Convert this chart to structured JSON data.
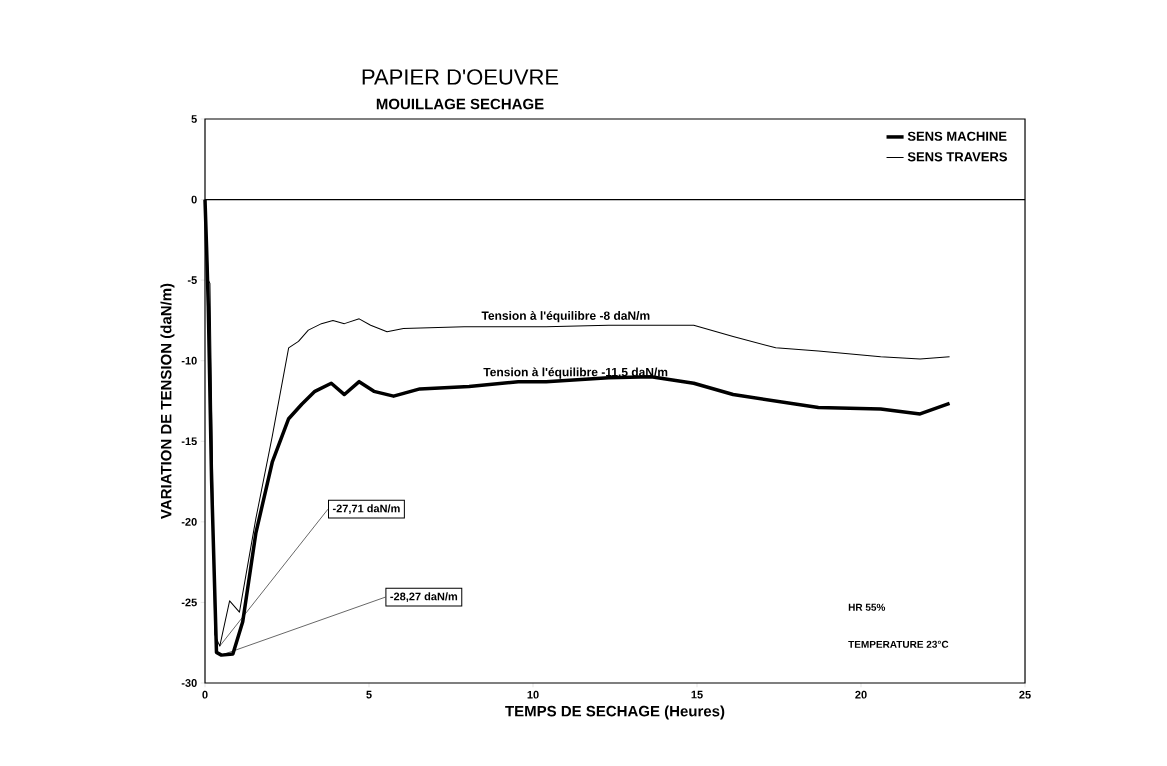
{
  "chart_data": {
    "type": "line",
    "title": "PAPIER D'OEUVRE",
    "subtitle": "MOUILLAGE SECHAGE",
    "xlabel": "TEMPS DE SECHAGE (Heures)",
    "ylabel": "VARIATION DE TENSION (daN/m)",
    "xlim": [
      0,
      25
    ],
    "ylim": [
      -30,
      5
    ],
    "xticks": [
      0,
      5,
      10,
      15,
      20,
      25
    ],
    "yticks": [
      -30,
      -25,
      -20,
      -15,
      -10,
      -5,
      0,
      5
    ],
    "grid": false,
    "legend": "top right",
    "marker": "none",
    "line_style": "solid",
    "ref_lines": [
      {
        "axis": "y",
        "value": 0,
        "color": "#000000"
      }
    ],
    "series": [
      {
        "name": "SENS MACHINE",
        "color": "#000000",
        "x": [
          0,
          0.05,
          0.1,
          0.2,
          0.35,
          0.5,
          0.85,
          1.15,
          1.55,
          2.05,
          2.55,
          2.95,
          3.35,
          3.85,
          4.25,
          4.7,
          5.15,
          5.75,
          6.55,
          8.05,
          9.55,
          10.4,
          12.3,
          13.6,
          14.9,
          16.1,
          17.4,
          18.7,
          20.6,
          21.8,
          22.7
        ],
        "values": [
          0,
          -3.1,
          -6.6,
          -17.4,
          -28.1,
          -28.27,
          -28.2,
          -26.2,
          -20.7,
          -16.3,
          -13.6,
          -12.7,
          -11.9,
          -11.4,
          -12.1,
          -11.3,
          -11.9,
          -12.2,
          -11.75,
          -11.6,
          -11.3,
          -11.3,
          -11.05,
          -11.0,
          -11.4,
          -12.1,
          -12.5,
          -12.9,
          -13.0,
          -13.3,
          -12.65
        ]
      },
      {
        "name": "SENS TRAVERS",
        "color": "#000000",
        "x": [
          0,
          0.1,
          0.15,
          0.3,
          0.45,
          0.75,
          1.05,
          1.55,
          2.05,
          2.55,
          2.85,
          3.15,
          3.55,
          3.9,
          4.25,
          4.7,
          5.05,
          5.55,
          6.05,
          7.9,
          10.4,
          12.3,
          14.9,
          16.1,
          17.4,
          18.7,
          20.6,
          21.8,
          22.7
        ],
        "values": [
          0,
          -5,
          -5.2,
          -27,
          -27.71,
          -24.9,
          -25.6,
          -19.8,
          -14.7,
          -9.2,
          -8.8,
          -8.1,
          -7.7,
          -7.5,
          -7.7,
          -7.4,
          -7.8,
          -8.2,
          -8.0,
          -7.9,
          -7.9,
          -7.8,
          -7.8,
          -8.5,
          -9.2,
          -9.4,
          -9.75,
          -9.9,
          -9.75
        ]
      }
    ],
    "annotations": [
      {
        "text": "Tension à l'équilibre -8 daN/m",
        "x": 11,
        "y": -8
      },
      {
        "text": "Tension à l'équilibre -11,5 daN/m",
        "x": 11.3,
        "y": -11.5
      },
      {
        "text": "-27,71 daN/m",
        "x": 0.45,
        "y": -27.71
      },
      {
        "text": "-28,27 daN/m",
        "x": 0.5,
        "y": -28.27
      },
      "HR 55%",
      "TEMPERATURE 23°C"
    ]
  }
}
